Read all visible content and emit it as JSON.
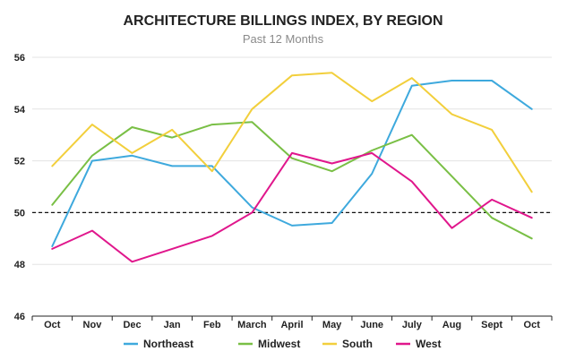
{
  "chart_data": {
    "type": "line",
    "title": "ARCHITECTURE BILLINGS INDEX, BY REGION",
    "subtitle": "Past 12 Months",
    "xlabel": "",
    "ylabel": "",
    "categories": [
      "Oct",
      "Nov",
      "Dec",
      "Jan",
      "Feb",
      "March",
      "April",
      "May",
      "June",
      "July",
      "Aug",
      "Sept",
      "Oct"
    ],
    "ylim": [
      46,
      56
    ],
    "yticks": [
      46,
      48,
      50,
      52,
      54,
      56
    ],
    "grid": true,
    "reference_line": 50,
    "legend_position": "bottom",
    "series": [
      {
        "name": "Northeast",
        "color": "#3ea9dd",
        "values": [
          48.7,
          52.0,
          52.2,
          51.8,
          51.8,
          50.2,
          49.5,
          49.6,
          51.5,
          54.9,
          55.1,
          55.1,
          54.0
        ]
      },
      {
        "name": "Midwest",
        "color": "#79bf45",
        "values": [
          50.3,
          52.2,
          53.3,
          52.9,
          53.4,
          53.5,
          52.1,
          51.6,
          52.4,
          53.0,
          51.4,
          49.8,
          49.0
        ]
      },
      {
        "name": "South",
        "color": "#f2cf3c",
        "values": [
          51.8,
          53.4,
          52.3,
          53.2,
          51.6,
          54.0,
          55.3,
          55.4,
          54.3,
          55.2,
          53.8,
          53.2,
          50.8
        ]
      },
      {
        "name": "West",
        "color": "#e0178c",
        "values": [
          48.6,
          49.3,
          48.1,
          48.6,
          49.1,
          50.0,
          52.3,
          51.9,
          52.3,
          51.2,
          49.4,
          50.5,
          49.8
        ]
      }
    ]
  }
}
